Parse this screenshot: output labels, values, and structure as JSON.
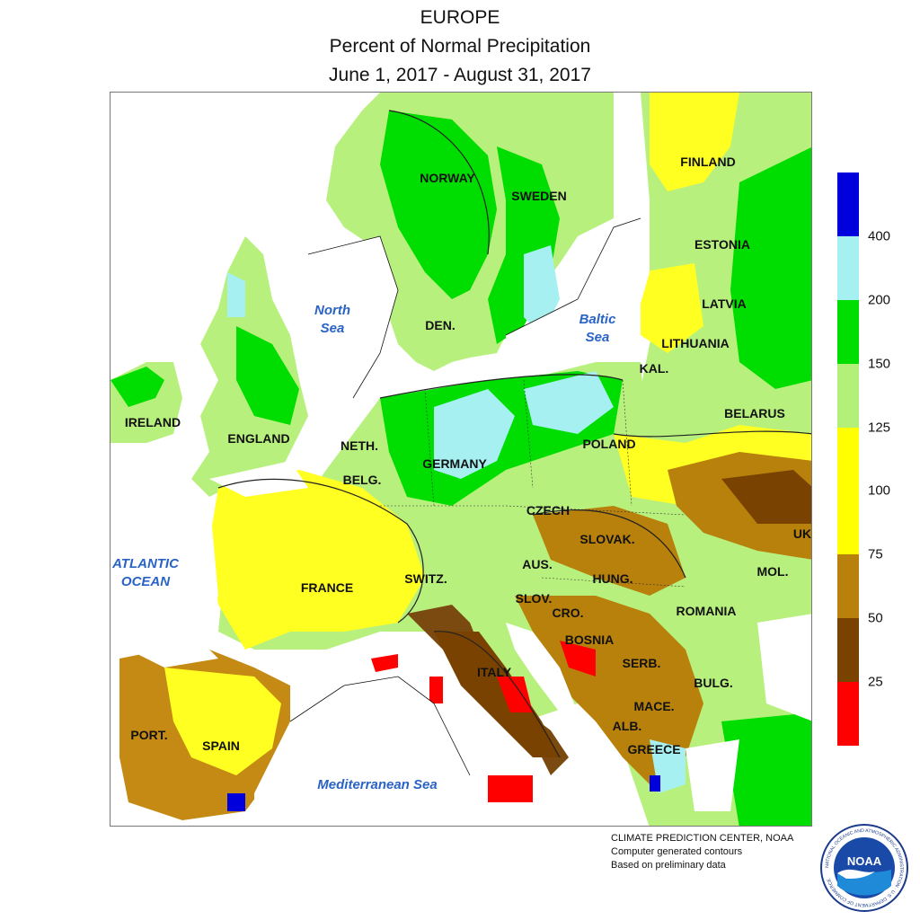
{
  "header": {
    "line1": "EUROPE",
    "line2": "Percent of Normal Precipitation",
    "line3": "June 1, 2017 - August 31, 2017"
  },
  "countries": [
    {
      "key": "norway",
      "label": "NORWAY"
    },
    {
      "key": "sweden",
      "label": "SWEDEN"
    },
    {
      "key": "finland",
      "label": "FINLAND"
    },
    {
      "key": "estonia",
      "label": "ESTONIA"
    },
    {
      "key": "latvia",
      "label": "LATVIA"
    },
    {
      "key": "lithuania",
      "label": "LITHUANIA"
    },
    {
      "key": "kal",
      "label": "KAL."
    },
    {
      "key": "belarus",
      "label": "BELARUS"
    },
    {
      "key": "den",
      "label": "DEN."
    },
    {
      "key": "ireland",
      "label": "IRELAND"
    },
    {
      "key": "england",
      "label": "ENGLAND"
    },
    {
      "key": "neth",
      "label": "NETH."
    },
    {
      "key": "belg",
      "label": "BELG."
    },
    {
      "key": "germany",
      "label": "GERMANY"
    },
    {
      "key": "poland",
      "label": "POLAND"
    },
    {
      "key": "czech",
      "label": "CZECH"
    },
    {
      "key": "slovak",
      "label": "SLOVAK."
    },
    {
      "key": "uk",
      "label": "UK"
    },
    {
      "key": "france",
      "label": "FRANCE"
    },
    {
      "key": "switz",
      "label": "SWITZ."
    },
    {
      "key": "aus",
      "label": "AUS."
    },
    {
      "key": "hung",
      "label": "HUNG."
    },
    {
      "key": "mol",
      "label": "MOL."
    },
    {
      "key": "slov",
      "label": "SLOV."
    },
    {
      "key": "cro",
      "label": "CRO."
    },
    {
      "key": "romania",
      "label": "ROMANIA"
    },
    {
      "key": "bosnia",
      "label": "BOSNIA"
    },
    {
      "key": "serb",
      "label": "SERB."
    },
    {
      "key": "italy",
      "label": "ITALY"
    },
    {
      "key": "bulg",
      "label": "BULG."
    },
    {
      "key": "mace",
      "label": "MACE."
    },
    {
      "key": "alb",
      "label": "ALB."
    },
    {
      "key": "greece",
      "label": "GREECE"
    },
    {
      "key": "port",
      "label": "PORT."
    },
    {
      "key": "spain",
      "label": "SPAIN"
    }
  ],
  "seas": {
    "north_sea": {
      "line1": "North",
      "line2": "Sea"
    },
    "baltic_sea": {
      "line1": "Baltic",
      "line2": "Sea"
    },
    "atlantic": {
      "line1": "ATLANTIC",
      "line2": "OCEAN"
    },
    "mediterranean": {
      "line1": "Mediterranean Sea"
    }
  },
  "legend": {
    "bins": [
      {
        "range": "0-25",
        "color": "#ff0000"
      },
      {
        "range": "25-50",
        "color": "#7a4200"
      },
      {
        "range": "50-75",
        "color": "#b8810c"
      },
      {
        "range": "75-100",
        "color": "#ffff00"
      },
      {
        "range": "100-125",
        "color": "#ffff00"
      },
      {
        "range": "125-150",
        "color": "#b3f07a"
      },
      {
        "range": "150-200",
        "color": "#00dd00"
      },
      {
        "range": "200-400",
        "color": "#a6f0f2"
      },
      {
        "range": ">400",
        "color": "#0000dd"
      }
    ],
    "ticks": [
      "25",
      "50",
      "75",
      "100",
      "125",
      "150",
      "200",
      "400"
    ]
  },
  "credit": {
    "line1": "CLIMATE PREDICTION CENTER, NOAA",
    "line2": "Computer generated contours",
    "line3": "Based on preliminary data"
  },
  "logo": {
    "text": "NOAA",
    "ring_text": "NATIONAL OCEANIC AND ATMOSPHERIC ADMINISTRATION · U.S. DEPARTMENT OF COMMERCE"
  }
}
